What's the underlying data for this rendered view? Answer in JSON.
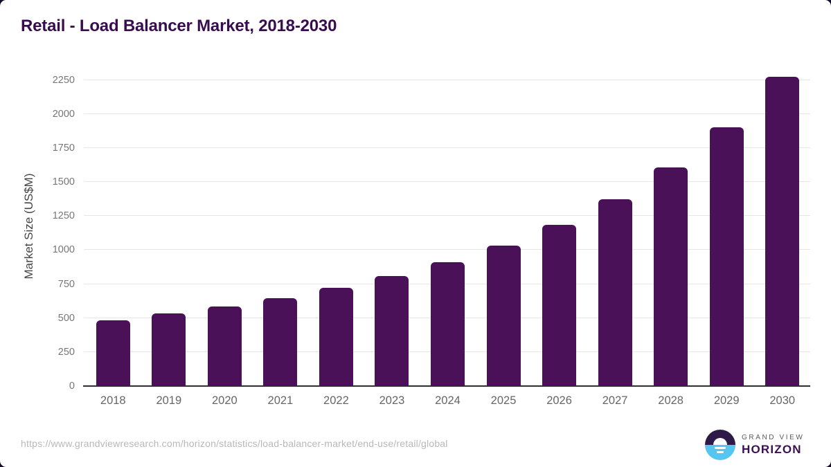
{
  "page": {
    "title": "Retail - Load Balancer Market, 2018-2030",
    "source_url": "https://www.grandviewresearch.com/horizon/statistics/load-balancer-market/end-use/retail/global"
  },
  "branding": {
    "logo_icon": "sunrise-horizon-icon",
    "line1": "GRAND VIEW",
    "line2": "HORIZON"
  },
  "colors": {
    "bar": "#4a1159",
    "title_text": "#380d4f",
    "gridline": "#e6e6e6",
    "axis_line": "#2f2f2f",
    "y_tick_label": "#767676",
    "x_tick_label": "#666666",
    "url_text": "#b8b8b8",
    "logo_purple": "#2e1a47",
    "logo_blue": "#55c6f2"
  },
  "chart_data": {
    "type": "bar",
    "title": "Retail - Load Balancer Market, 2018-2030",
    "categories": [
      "2018",
      "2019",
      "2020",
      "2021",
      "2022",
      "2023",
      "2024",
      "2025",
      "2026",
      "2027",
      "2028",
      "2029",
      "2030"
    ],
    "values": [
      485,
      535,
      585,
      648,
      722,
      810,
      910,
      1035,
      1185,
      1375,
      1605,
      1900,
      2275
    ],
    "xlabel": "",
    "ylabel": "Market Size (US$M)",
    "yticks": [
      0,
      250,
      500,
      750,
      1000,
      1250,
      1500,
      1750,
      2000,
      2250
    ],
    "ylim": [
      0,
      2350
    ],
    "grid": "horizontal",
    "legend": "none",
    "bar_color": "#4a1159"
  }
}
